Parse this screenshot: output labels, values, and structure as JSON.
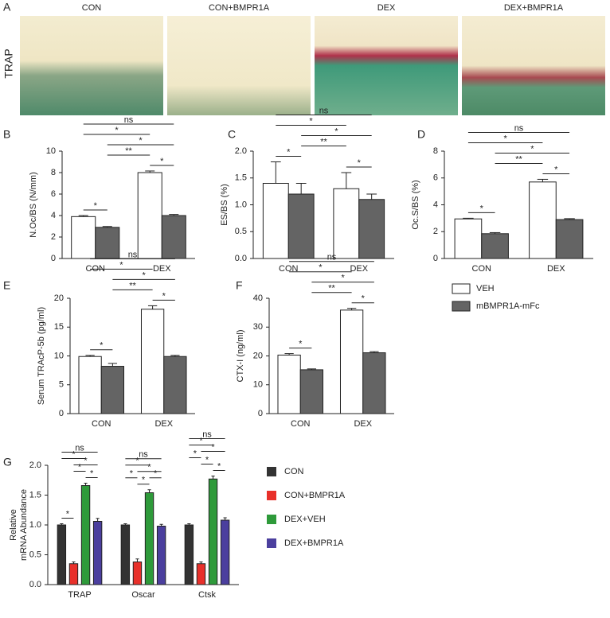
{
  "figure": {
    "panel_a": {
      "panel": "A",
      "row_label": "TRAP",
      "images": [
        "CON",
        "CON+BMPR1A",
        "DEX",
        "DEX+BMPR1A"
      ]
    }
  },
  "chart_data": [
    {
      "type": "bar",
      "panel": "B",
      "ylabel": "N.Oc/BS (N/mm)",
      "categories": [
        "CON",
        "DEX"
      ],
      "ylim": [
        0,
        10
      ],
      "yticks": [
        0,
        2,
        4,
        6,
        8,
        10
      ],
      "series": [
        {
          "name": "VEH",
          "color": "#ffffff",
          "values": [
            3.9,
            8.0
          ],
          "errors": [
            0.1,
            0.15
          ]
        },
        {
          "name": "mBMPR1A-mFc",
          "color": "#646464",
          "values": [
            2.9,
            4.0
          ],
          "errors": [
            0.08,
            0.1
          ]
        }
      ],
      "brackets": [
        {
          "label": "ns",
          "from": [
            0,
            0
          ],
          "to": [
            1,
            1
          ]
        },
        {
          "label": "*",
          "from": [
            0,
            1
          ],
          "to": [
            1,
            1
          ]
        },
        {
          "label": "**",
          "from": [
            0,
            1
          ],
          "to": [
            1,
            0
          ]
        },
        {
          "label": "*",
          "from": [
            1,
            0
          ],
          "to": [
            1,
            1
          ]
        },
        {
          "label": "*",
          "from": [
            0,
            0
          ],
          "to": [
            1,
            0
          ]
        },
        {
          "label": "*",
          "from": [
            0,
            0
          ],
          "to": [
            0,
            1
          ]
        }
      ]
    },
    {
      "type": "bar",
      "panel": "C",
      "ylabel": "ES/BS (%)",
      "categories": [
        "CON",
        "DEX"
      ],
      "ylim": [
        0,
        2
      ],
      "yticks": [
        {
          "value": 0,
          "label": "0.0"
        },
        {
          "value": 0.5,
          "label": "0.5"
        },
        {
          "value": 1,
          "label": "1.0"
        },
        {
          "value": 1.5,
          "label": "1.5"
        },
        {
          "value": 2,
          "label": "2.0"
        }
      ],
      "series": [
        {
          "name": "VEH",
          "color": "#ffffff",
          "values": [
            1.4,
            1.3
          ],
          "errors": [
            0.4,
            0.3
          ]
        },
        {
          "name": "mBMPR1A-mFc",
          "color": "#646464",
          "values": [
            1.2,
            1.1
          ],
          "errors": [
            0.2,
            0.1
          ]
        }
      ],
      "brackets": [
        {
          "label": "ns",
          "from": [
            0,
            0
          ],
          "to": [
            1,
            1
          ]
        },
        {
          "label": "*",
          "from": [
            0,
            1
          ],
          "to": [
            1,
            1
          ]
        },
        {
          "label": "*",
          "from": [
            0,
            0
          ],
          "to": [
            1,
            0
          ]
        },
        {
          "label": "*",
          "from": [
            0,
            0
          ],
          "to": [
            0,
            1
          ]
        },
        {
          "label": "**",
          "from": [
            0,
            1
          ],
          "to": [
            1,
            0
          ]
        },
        {
          "label": "*",
          "from": [
            1,
            0
          ],
          "to": [
            1,
            1
          ]
        }
      ]
    },
    {
      "type": "bar",
      "panel": "D",
      "ylabel": "Oc.S/BS (%)",
      "categories": [
        "CON",
        "DEX"
      ],
      "ylim": [
        0,
        8
      ],
      "yticks": [
        0,
        2,
        4,
        6,
        8
      ],
      "series": [
        {
          "name": "VEH",
          "color": "#ffffff",
          "values": [
            2.95,
            5.7
          ],
          "errors": [
            0.05,
            0.2
          ]
        },
        {
          "name": "mBMPR1A-mFc",
          "color": "#646464",
          "values": [
            1.85,
            2.9
          ],
          "errors": [
            0.08,
            0.07
          ]
        }
      ],
      "brackets": [
        {
          "label": "ns",
          "from": [
            0,
            0
          ],
          "to": [
            1,
            1
          ]
        },
        {
          "label": "*",
          "from": [
            0,
            1
          ],
          "to": [
            1,
            1
          ]
        },
        {
          "label": "**",
          "from": [
            0,
            1
          ],
          "to": [
            1,
            0
          ]
        },
        {
          "label": "*",
          "from": [
            1,
            0
          ],
          "to": [
            1,
            1
          ]
        },
        {
          "label": "*",
          "from": [
            0,
            0
          ],
          "to": [
            1,
            0
          ]
        },
        {
          "label": "*",
          "from": [
            0,
            0
          ],
          "to": [
            0,
            1
          ]
        }
      ]
    },
    {
      "type": "bar",
      "panel": "E",
      "ylabel": "Serum TRAcP-5b (pg/ml)",
      "categories": [
        "CON",
        "DEX"
      ],
      "ylim": [
        0,
        20
      ],
      "yticks": [
        0,
        5,
        10,
        15,
        20
      ],
      "series": [
        {
          "name": "VEH",
          "color": "#ffffff",
          "values": [
            9.9,
            18.1
          ],
          "errors": [
            0.2,
            0.6
          ]
        },
        {
          "name": "mBMPR1A-mFc",
          "color": "#646464",
          "values": [
            8.2,
            9.9
          ],
          "errors": [
            0.5,
            0.2
          ]
        }
      ],
      "brackets": [
        {
          "label": "ns",
          "from": [
            0,
            0
          ],
          "to": [
            1,
            1
          ]
        },
        {
          "label": "*",
          "from": [
            0,
            1
          ],
          "to": [
            1,
            1
          ]
        },
        {
          "label": "**",
          "from": [
            0,
            1
          ],
          "to": [
            1,
            0
          ]
        },
        {
          "label": "*",
          "from": [
            1,
            0
          ],
          "to": [
            1,
            1
          ]
        },
        {
          "label": "*",
          "from": [
            0,
            0
          ],
          "to": [
            1,
            0
          ]
        },
        {
          "label": "*",
          "from": [
            0,
            0
          ],
          "to": [
            0,
            1
          ]
        }
      ]
    },
    {
      "type": "bar",
      "panel": "F",
      "ylabel": "CTX-I (ng/ml)",
      "categories": [
        "CON",
        "DEX"
      ],
      "ylim": [
        0,
        40
      ],
      "yticks": [
        0,
        10,
        20,
        30,
        40
      ],
      "legend": "right",
      "series": [
        {
          "name": "VEH",
          "color": "#ffffff",
          "values": [
            20.3,
            35.9
          ],
          "errors": [
            0.5,
            0.6
          ]
        },
        {
          "name": "mBMPR1A-mFc",
          "color": "#646464",
          "values": [
            15.2,
            21.1
          ],
          "errors": [
            0.3,
            0.4
          ]
        }
      ],
      "brackets": [
        {
          "label": "ns",
          "from": [
            0,
            0
          ],
          "to": [
            1,
            1
          ]
        },
        {
          "label": "*",
          "from": [
            0,
            1
          ],
          "to": [
            1,
            1
          ]
        },
        {
          "label": "**",
          "from": [
            0,
            1
          ],
          "to": [
            1,
            0
          ]
        },
        {
          "label": "*",
          "from": [
            1,
            0
          ],
          "to": [
            1,
            1
          ]
        },
        {
          "label": "*",
          "from": [
            0,
            0
          ],
          "to": [
            1,
            0
          ]
        },
        {
          "label": "*",
          "from": [
            0,
            0
          ],
          "to": [
            0,
            1
          ]
        }
      ]
    },
    {
      "type": "bar",
      "panel": "G",
      "ylabel": [
        "Relative",
        "mRNA Abundance"
      ],
      "categories": [
        "TRAP",
        "Oscar",
        "Ctsk"
      ],
      "ylim": [
        0,
        2
      ],
      "yticks": [
        {
          "value": 0,
          "label": "0.0"
        },
        {
          "value": 0.5,
          "label": "0.5"
        },
        {
          "value": 1,
          "label": "1.0"
        },
        {
          "value": 1.5,
          "label": "1.5"
        },
        {
          "value": 2,
          "label": "2.0"
        }
      ],
      "legend": "right",
      "series": [
        {
          "name": "CON",
          "color": "#333333",
          "values": [
            1.0,
            1.0,
            1.0
          ],
          "errors": [
            0.02,
            0.02,
            0.02
          ]
        },
        {
          "name": "CON+BMPR1A",
          "color": "#e8302a",
          "values": [
            0.35,
            0.38,
            0.35
          ],
          "errors": [
            0.03,
            0.05,
            0.03
          ]
        },
        {
          "name": "DEX+VEH",
          "color": "#2e9a3a",
          "values": [
            1.66,
            1.54,
            1.77
          ],
          "errors": [
            0.04,
            0.05,
            0.05
          ]
        },
        {
          "name": "DEX+BMPR1A",
          "color": "#4b3f9e",
          "values": [
            1.06,
            0.98,
            1.08
          ],
          "errors": [
            0.05,
            0.03,
            0.04
          ]
        }
      ],
      "brackets": [
        {
          "label": "ns",
          "from": [
            0,
            0
          ],
          "to": [
            0,
            3
          ]
        },
        {
          "label": "*",
          "from": [
            0,
            1
          ],
          "to": [
            0,
            3
          ]
        },
        {
          "label": "*",
          "from": [
            0,
            0
          ],
          "to": [
            0,
            2
          ]
        },
        {
          "label": "*",
          "from": [
            0,
            1
          ],
          "to": [
            0,
            2
          ]
        },
        {
          "label": "*",
          "from": [
            0,
            2
          ],
          "to": [
            0,
            3
          ]
        },
        {
          "label": "*",
          "from": [
            0,
            0
          ],
          "to": [
            0,
            1
          ]
        },
        {
          "label": "ns",
          "from": [
            1,
            0
          ],
          "to": [
            1,
            3
          ]
        },
        {
          "label": "*",
          "from": [
            1,
            1
          ],
          "to": [
            1,
            3
          ]
        },
        {
          "label": "*",
          "from": [
            1,
            0
          ],
          "to": [
            1,
            2
          ]
        },
        {
          "label": "*",
          "from": [
            1,
            1
          ],
          "to": [
            1,
            2
          ]
        },
        {
          "label": "*",
          "from": [
            1,
            2
          ],
          "to": [
            1,
            3
          ]
        },
        {
          "label": "*",
          "from": [
            1,
            0
          ],
          "to": [
            1,
            1
          ]
        },
        {
          "label": "ns",
          "from": [
            2,
            0
          ],
          "to": [
            2,
            3
          ]
        },
        {
          "label": "*",
          "from": [
            2,
            1
          ],
          "to": [
            2,
            3
          ]
        },
        {
          "label": "*",
          "from": [
            2,
            0
          ],
          "to": [
            2,
            2
          ]
        },
        {
          "label": "*",
          "from": [
            2,
            1
          ],
          "to": [
            2,
            2
          ]
        },
        {
          "label": "*",
          "from": [
            2,
            2
          ],
          "to": [
            2,
            3
          ]
        },
        {
          "label": "*",
          "from": [
            2,
            0
          ],
          "to": [
            2,
            1
          ]
        }
      ]
    }
  ]
}
